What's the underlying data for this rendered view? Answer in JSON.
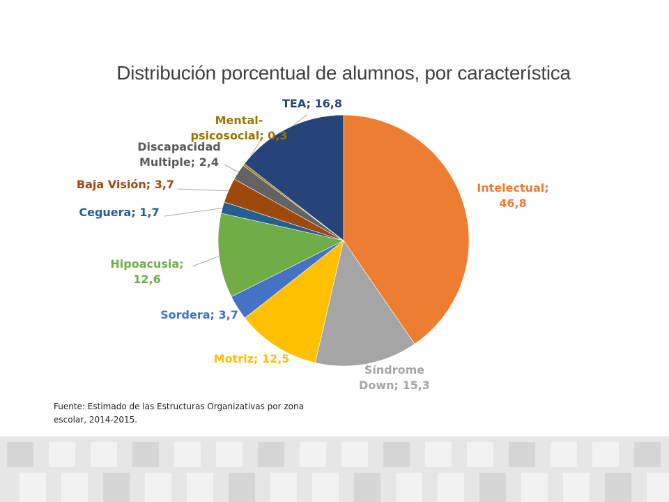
{
  "chart_data": {
    "type": "pie",
    "title": "Distribución porcentual de alumnos, por característica",
    "unit": "%",
    "start_angle_deg": 0,
    "direction": "clockwise",
    "slices": [
      {
        "label": "Intelectual",
        "value": 46.8,
        "display": "Intelectual; 46,8",
        "lines": [
          "Intelectual;",
          "46,8"
        ],
        "color": "#ed7d31",
        "label_color": "#ed7d31"
      },
      {
        "label": "Síndrome Down",
        "value": 15.3,
        "display": "Síndrome Down; 15,3",
        "lines": [
          "Síndrome",
          "Down; 15,3"
        ],
        "color": "#a5a5a5",
        "label_color": "#a5a5a5"
      },
      {
        "label": "Motriz",
        "value": 12.5,
        "display": "Motriz; 12,5",
        "lines": [
          "Motriz; 12,5"
        ],
        "color": "#ffc000",
        "label_color": "#ffc000"
      },
      {
        "label": "Sordera",
        "value": 3.7,
        "display": "Sordera; 3,7",
        "lines": [
          "Sordera; 3,7"
        ],
        "color": "#4472c4",
        "label_color": "#4472c4"
      },
      {
        "label": "Hipoacusia",
        "value": 12.6,
        "display": "Hipoacusia; 12,6",
        "lines": [
          "Hipoacusia;",
          "12,6"
        ],
        "color": "#70ad47",
        "label_color": "#70ad47"
      },
      {
        "label": "Ceguera",
        "value": 1.7,
        "display": "Ceguera; 1,7",
        "lines": [
          "Ceguera; 1,7"
        ],
        "color": "#255e91",
        "label_color": "#255e91"
      },
      {
        "label": "Baja Visión",
        "value": 3.7,
        "display": "Baja Visión; 3,7",
        "lines": [
          "Baja Visión; 3,7"
        ],
        "color": "#9e480e",
        "label_color": "#9e480e"
      },
      {
        "label": "Discapacidad Multiple",
        "value": 2.4,
        "display": "Discapacidad Multiple; 2,4",
        "lines": [
          "Discapacidad",
          "Multiple; 2,4"
        ],
        "color": "#636363",
        "label_color": "#595959"
      },
      {
        "label": "Mental-psicosocial",
        "value": 0.3,
        "display": "Mental-psicosocial; 0,3",
        "lines": [
          "Mental-",
          "psicosocial; 0,3"
        ],
        "color": "#997300",
        "label_color": "#997300"
      },
      {
        "label": "TEA",
        "value": 16.8,
        "display": "TEA; 16,8",
        "lines": [
          "TEA; 16,8"
        ],
        "color": "#264478",
        "label_color": "#264478"
      }
    ]
  },
  "footnote": {
    "line1": "Fuente: Estimado de las Estructuras Organizativas por zona",
    "line2": "escolar, 2014-2015."
  }
}
